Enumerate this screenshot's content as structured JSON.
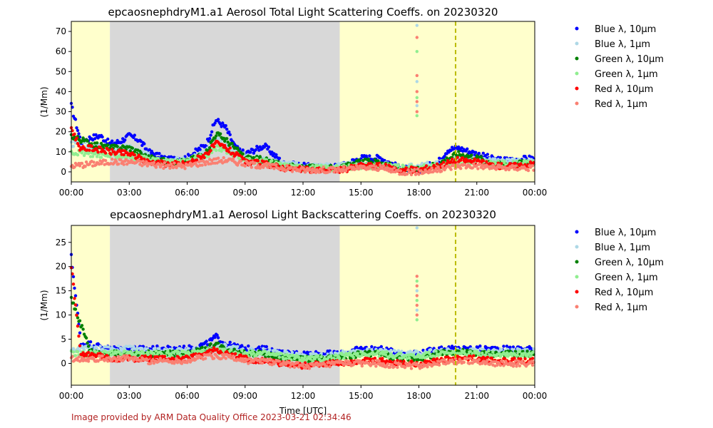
{
  "footer_text": "Image provided by ARM Data Quality Office 2023-03-21 02:34:46",
  "colors": {
    "blue_10": "#0000ff",
    "blue_1": "#add8e6",
    "green_10": "#008000",
    "green_1": "#90ee90",
    "red_10": "#ff0000",
    "red_1": "#fa8072",
    "missing_shade": "#d8d8d8",
    "flag_shade": "#ffffcc",
    "marker_line": "#bbbb00"
  },
  "chart_data": [
    {
      "type": "scatter",
      "title": "epcaosnephdryM1.a1 Aerosol Total Light Scattering Coeffs. on 20230320",
      "xlabel": "",
      "ylabel": "(1/Mm)",
      "xlim_hours": [
        0,
        24
      ],
      "ylim": [
        -5,
        75
      ],
      "x_ticks": [
        "00:00",
        "03:00",
        "06:00",
        "09:00",
        "12:00",
        "15:00",
        "18:00",
        "21:00",
        "00:00"
      ],
      "y_ticks": [
        0,
        10,
        20,
        30,
        40,
        50,
        60,
        70
      ],
      "legend_position": "outside-right",
      "legend": [
        "Blue λ, 10μm",
        "Blue λ, 1μm",
        "Green λ, 10μm",
        "Green λ, 1μm",
        "Red λ, 10μm",
        "Red λ, 1μm"
      ],
      "shaded_regions_hours": [
        {
          "start": 0,
          "end": 2,
          "kind": "flag"
        },
        {
          "start": 2,
          "end": 13.9,
          "kind": "missing"
        },
        {
          "start": 13.9,
          "end": 24,
          "kind": "flag"
        }
      ],
      "vertical_line_hours": 19.9,
      "series": [
        {
          "name": "Blue λ, 10μm",
          "color": "blue_10",
          "x_hours": [
            0,
            0.5,
            1,
            1.5,
            2,
            2.5,
            3,
            3.5,
            4,
            5,
            6,
            7,
            7.5,
            8,
            8.5,
            9,
            10,
            11,
            12,
            13,
            14,
            15,
            16,
            17,
            18,
            19,
            19.5,
            20,
            21,
            22,
            23,
            24
          ],
          "values": [
            33,
            15,
            17,
            18,
            14,
            15,
            18,
            16,
            10,
            6,
            7,
            14,
            26,
            22,
            12,
            9,
            13,
            4,
            3,
            2,
            3,
            7,
            7,
            2,
            1,
            5,
            11,
            12,
            9,
            6,
            6,
            7
          ]
        },
        {
          "name": "Blue λ, 1μm",
          "color": "blue_1",
          "x_hours": [
            0,
            1,
            2,
            3,
            4,
            5,
            6,
            7,
            7.5,
            8,
            9,
            10,
            11,
            12,
            13,
            14,
            15,
            16,
            17,
            18,
            19,
            20,
            21,
            22,
            23,
            24
          ],
          "values": [
            14,
            13,
            12,
            12,
            8,
            6,
            6,
            10,
            16,
            14,
            8,
            6,
            4,
            3,
            3,
            3,
            4,
            4,
            2,
            3,
            4,
            7,
            6,
            5,
            5,
            5
          ]
        },
        {
          "name": "Green λ, 10μm",
          "color": "green_10",
          "x_hours": [
            0,
            1,
            2,
            3,
            4,
            5,
            6,
            7,
            7.5,
            8,
            9,
            10,
            11,
            12,
            13,
            14,
            15,
            16,
            17,
            18,
            19,
            20,
            21,
            22,
            23,
            24
          ],
          "values": [
            18,
            14,
            12,
            12,
            7,
            5,
            5,
            10,
            19,
            16,
            7,
            6,
            3,
            2,
            2,
            2,
            5,
            5,
            1,
            1,
            4,
            9,
            7,
            4,
            4,
            5
          ]
        },
        {
          "name": "Green λ, 1μm",
          "color": "green_1",
          "x_hours": [
            0,
            1,
            2,
            3,
            4,
            5,
            6,
            7,
            7.5,
            8,
            9,
            10,
            11,
            12,
            13,
            14,
            15,
            16,
            17,
            18,
            19,
            20,
            21,
            22,
            23,
            24
          ],
          "values": [
            10,
            9,
            8,
            8,
            6,
            5,
            5,
            8,
            12,
            11,
            6,
            5,
            3,
            2,
            2,
            2,
            3,
            3,
            2,
            2,
            3,
            5,
            5,
            4,
            4,
            4
          ]
        },
        {
          "name": "Red λ, 10μm",
          "color": "red_10",
          "x_hours": [
            0,
            0.5,
            1,
            2,
            3,
            4,
            5,
            6,
            7,
            7.5,
            8,
            9,
            10,
            11,
            12,
            13,
            14,
            15,
            16,
            17,
            18,
            19,
            20,
            21,
            22,
            23,
            24
          ],
          "values": [
            22,
            11,
            12,
            10,
            9,
            5,
            4,
            4,
            9,
            14,
            12,
            5,
            4,
            2,
            1,
            1,
            1,
            3,
            3,
            1,
            1,
            3,
            6,
            5,
            3,
            3,
            4
          ]
        },
        {
          "name": "Red λ, 1μm",
          "color": "red_1",
          "x_hours": [
            0,
            1,
            2,
            3,
            4,
            5,
            6,
            7,
            8,
            9,
            10,
            11,
            12,
            13,
            14,
            15,
            16,
            17,
            18,
            19,
            20,
            21,
            22,
            23,
            24
          ],
          "values": [
            3,
            4,
            5,
            5,
            4,
            3,
            3,
            5,
            6,
            4,
            3,
            2,
            1,
            1,
            1,
            2,
            2,
            0,
            0,
            1,
            3,
            3,
            2,
            2,
            2
          ]
        }
      ],
      "spikes": [
        {
          "x_hours": 17.9,
          "values": [
            73,
            67,
            60,
            48,
            45,
            40,
            37,
            35,
            33,
            30,
            28
          ]
        }
      ]
    },
    {
      "type": "scatter",
      "title": "epcaosnephdryM1.a1 Aerosol Light Backscattering Coeffs. on 20230320",
      "xlabel": "Time [UTC]",
      "ylabel": "(1/Mm)",
      "xlim_hours": [
        0,
        24
      ],
      "ylim": [
        -4.5,
        28.5
      ],
      "x_ticks": [
        "00:00",
        "03:00",
        "06:00",
        "09:00",
        "12:00",
        "15:00",
        "18:00",
        "21:00",
        "00:00"
      ],
      "y_ticks": [
        0,
        5,
        10,
        15,
        20,
        25
      ],
      "legend_position": "outside-right",
      "legend": [
        "Blue λ, 10μm",
        "Blue λ, 1μm",
        "Green λ, 10μm",
        "Green λ, 1μm",
        "Red λ, 10μm",
        "Red λ, 1μm"
      ],
      "shaded_regions_hours": [
        {
          "start": 0,
          "end": 2,
          "kind": "flag"
        },
        {
          "start": 2,
          "end": 13.9,
          "kind": "missing"
        },
        {
          "start": 13.9,
          "end": 24,
          "kind": "flag"
        }
      ],
      "vertical_line_hours": 19.9,
      "series": [
        {
          "name": "Blue λ, 10μm",
          "color": "blue_10",
          "x_hours": [
            0,
            0.5,
            1,
            2,
            3,
            4,
            5,
            6,
            7,
            7.5,
            8,
            9,
            10,
            11,
            12,
            13,
            14,
            15,
            16,
            17,
            18,
            19,
            20,
            21,
            22,
            23,
            24
          ],
          "values": [
            22,
            4,
            4,
            3,
            3,
            3,
            3,
            3,
            4,
            5.5,
            4,
            3,
            3,
            2,
            2,
            2,
            2,
            3,
            3,
            2,
            2,
            3,
            3,
            3,
            3,
            3,
            3
          ]
        },
        {
          "name": "Blue λ, 1μm",
          "color": "blue_1",
          "x_hours": [
            0,
            1,
            2,
            3,
            4,
            5,
            6,
            7,
            8,
            9,
            10,
            11,
            12,
            13,
            14,
            15,
            16,
            17,
            18,
            19,
            20,
            21,
            22,
            23,
            24
          ],
          "values": [
            3,
            3,
            3,
            3,
            2.5,
            2.5,
            2.5,
            3,
            3.5,
            2.5,
            2.5,
            2,
            1.5,
            1.5,
            2,
            2.5,
            2.5,
            2,
            2,
            2.5,
            2.5,
            2.5,
            2.5,
            2.5,
            2.5
          ]
        },
        {
          "name": "Green λ, 10μm",
          "color": "green_10",
          "x_hours": [
            0,
            1,
            2,
            3,
            4,
            5,
            6,
            7,
            7.5,
            8,
            9,
            10,
            11,
            12,
            13,
            14,
            15,
            16,
            17,
            18,
            19,
            20,
            21,
            22,
            23,
            24
          ],
          "values": [
            13.5,
            2.5,
            2,
            2,
            2,
            2,
            2,
            3,
            4,
            3,
            2,
            2,
            1,
            1,
            1,
            1,
            2,
            2,
            1,
            1,
            2,
            2.5,
            2,
            2,
            2,
            2
          ]
        },
        {
          "name": "Green λ, 1μm",
          "color": "green_1",
          "x_hours": [
            0,
            1,
            2,
            3,
            4,
            5,
            6,
            7,
            8,
            9,
            10,
            11,
            12,
            13,
            14,
            15,
            16,
            17,
            18,
            19,
            20,
            21,
            22,
            23,
            24
          ],
          "values": [
            2,
            2,
            2,
            2,
            2,
            2,
            2,
            2.5,
            2.5,
            2,
            2,
            1.5,
            1,
            1,
            1.5,
            2,
            2,
            1.5,
            1.5,
            2,
            2,
            2,
            2,
            2,
            2
          ]
        },
        {
          "name": "Red λ, 10μm",
          "color": "red_10",
          "x_hours": [
            0,
            0.5,
            1,
            2,
            3,
            4,
            5,
            6,
            7,
            7.5,
            8,
            9,
            10,
            11,
            12,
            13,
            14,
            15,
            16,
            17,
            18,
            19,
            20,
            21,
            22,
            23,
            24
          ],
          "values": [
            20,
            1.5,
            2,
            1,
            1,
            1,
            1,
            1,
            2,
            3,
            2,
            1,
            0.5,
            0,
            -0.5,
            0,
            0,
            0.5,
            0.5,
            0,
            0,
            0.5,
            1,
            1,
            0.5,
            0.5,
            0.5
          ]
        },
        {
          "name": "Red λ, 1μm",
          "color": "red_1",
          "x_hours": [
            0,
            1,
            2,
            3,
            4,
            5,
            6,
            7,
            8,
            9,
            10,
            11,
            12,
            13,
            14,
            15,
            16,
            17,
            18,
            19,
            20,
            21,
            22,
            23,
            24
          ],
          "values": [
            1,
            1,
            1,
            1,
            0.5,
            0.5,
            0.5,
            1.5,
            1.5,
            0.5,
            0.5,
            0,
            -0.5,
            -0.5,
            0,
            0,
            0,
            -0.5,
            -0.5,
            0,
            0.5,
            0.5,
            0,
            0,
            0
          ]
        }
      ],
      "spikes": [
        {
          "x_hours": 17.9,
          "values": [
            28,
            18,
            17,
            16,
            15,
            14,
            13,
            12,
            11,
            10,
            9
          ]
        }
      ]
    }
  ]
}
